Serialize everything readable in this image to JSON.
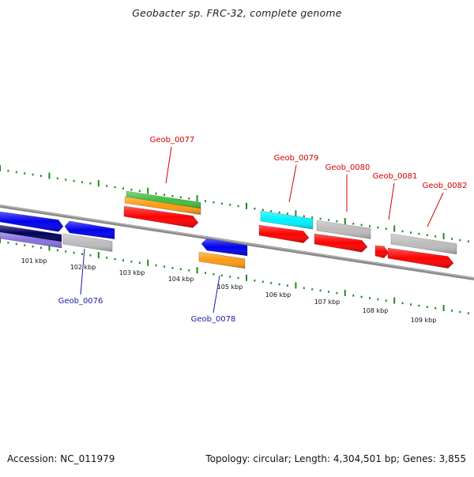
{
  "title": "Geobacter sp. FRC-32, complete genome",
  "footer": {
    "accession": "Accession: NC_011979",
    "stats": "Topology: circular; Length: 4,304,501 bp; Genes: 3,855"
  },
  "colors": {
    "backbone": "#8a8a8a",
    "tick": "#1f8a1f",
    "label_top": "#d40000",
    "label_bottom": "#1a1aa8",
    "red": "#ff0000",
    "blue": "#0000ee",
    "gray": "#bcbcbc",
    "cyan": "#00f0ff",
    "green": "#40c040",
    "orange": "#ff9a10",
    "navy": "#00005a",
    "lavender": "#8870e0"
  },
  "ruler_labels": [
    "101 kbp",
    "102 kbp",
    "103 kbp",
    "104 kbp",
    "105 kbp",
    "106 kbp",
    "107 kbp",
    "108 kbp",
    "109 kbp"
  ],
  "gene_labels_top": [
    "Geob_0077",
    "Geob_0079",
    "Geob_0080",
    "Geob_0081",
    "Geob_0082"
  ],
  "gene_labels_bottom": [
    "Geob_0076",
    "Geob_0078"
  ]
}
